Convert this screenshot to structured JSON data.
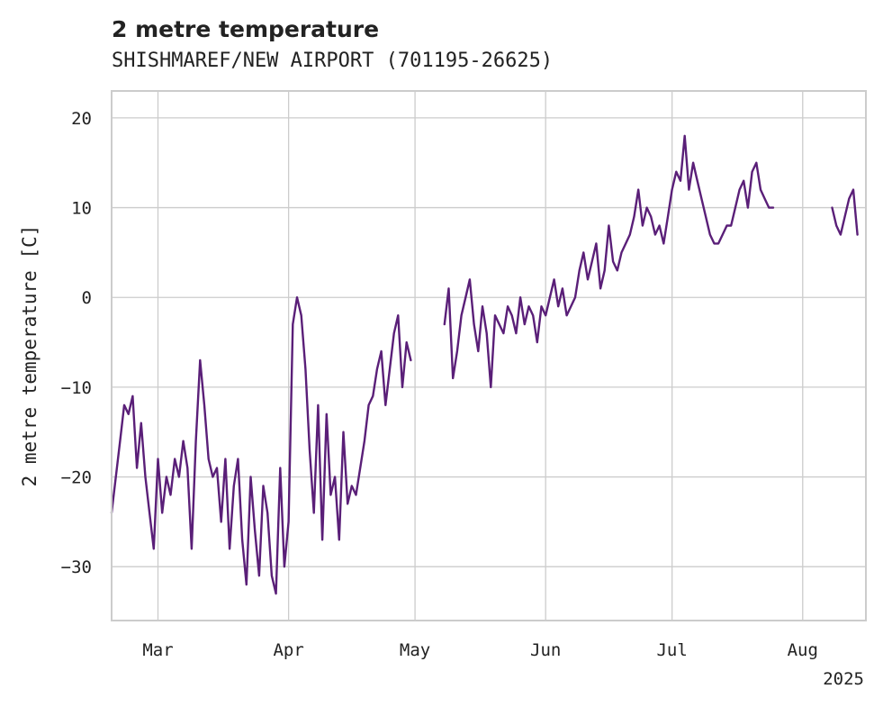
{
  "chart_data": {
    "type": "line",
    "title": "2 metre temperature",
    "subtitle": "SHISHMAREF/NEW AIRPORT (701195-26625)",
    "ylabel": "2 metre temperature [C]",
    "xlabel": "",
    "year_label": "2025",
    "xlim": [
      "2025-02-18",
      "2025-08-16"
    ],
    "ylim": [
      -36,
      23
    ],
    "x_ticks": [
      {
        "date": "2025-03-01",
        "label": "Mar"
      },
      {
        "date": "2025-04-01",
        "label": "Apr"
      },
      {
        "date": "2025-05-01",
        "label": "May"
      },
      {
        "date": "2025-06-01",
        "label": "Jun"
      },
      {
        "date": "2025-07-01",
        "label": "Jul"
      },
      {
        "date": "2025-08-01",
        "label": "Aug"
      }
    ],
    "y_ticks": [
      {
        "value": 20,
        "label": "20"
      },
      {
        "value": 10,
        "label": "10"
      },
      {
        "value": 0,
        "label": "0"
      },
      {
        "value": -10,
        "label": "−10"
      },
      {
        "value": -20,
        "label": "−20"
      },
      {
        "value": -30,
        "label": "−30"
      }
    ],
    "grid": true,
    "legend": "none",
    "colors": {
      "line": "#5a1f78"
    },
    "series": [
      {
        "segments": [
          {
            "x": [
              "2025-02-18",
              "2025-02-19",
              "2025-02-20",
              "2025-02-21",
              "2025-02-22",
              "2025-02-23",
              "2025-02-24",
              "2025-02-25",
              "2025-02-26",
              "2025-02-27",
              "2025-02-28",
              "2025-03-01",
              "2025-03-02",
              "2025-03-03",
              "2025-03-04",
              "2025-03-05",
              "2025-03-06",
              "2025-03-07",
              "2025-03-08",
              "2025-03-09",
              "2025-03-10",
              "2025-03-11",
              "2025-03-12",
              "2025-03-13",
              "2025-03-14",
              "2025-03-15",
              "2025-03-16",
              "2025-03-17",
              "2025-03-18",
              "2025-03-19",
              "2025-03-20",
              "2025-03-21",
              "2025-03-22",
              "2025-03-23",
              "2025-03-24",
              "2025-03-25",
              "2025-03-26",
              "2025-03-27",
              "2025-03-28",
              "2025-03-29",
              "2025-03-30",
              "2025-03-31",
              "2025-04-01",
              "2025-04-02",
              "2025-04-03",
              "2025-04-04",
              "2025-04-05",
              "2025-04-06",
              "2025-04-07",
              "2025-04-08",
              "2025-04-09",
              "2025-04-10",
              "2025-04-11",
              "2025-04-12",
              "2025-04-13",
              "2025-04-14",
              "2025-04-15",
              "2025-04-16",
              "2025-04-17",
              "2025-04-18",
              "2025-04-19",
              "2025-04-20",
              "2025-04-21",
              "2025-04-22",
              "2025-04-23",
              "2025-04-24",
              "2025-04-25",
              "2025-04-26",
              "2025-04-27",
              "2025-04-28",
              "2025-04-29",
              "2025-04-30"
            ],
            "y": [
              -24,
              -20,
              -16,
              -12,
              -13,
              -11,
              -19,
              -14,
              -20,
              -24,
              -28,
              -18,
              -24,
              -20,
              -22,
              -18,
              -20,
              -16,
              -19,
              -28,
              -16,
              -7,
              -12,
              -18,
              -20,
              -19,
              -25,
              -18,
              -28,
              -21,
              -18,
              -27,
              -32,
              -20,
              -26,
              -31,
              -21,
              -24,
              -31,
              -33,
              -19,
              -30,
              -25,
              -3,
              0,
              -2,
              -8,
              -17,
              -24,
              -12,
              -27,
              -13,
              -22,
              -20,
              -27,
              -15,
              -23,
              -21,
              -22,
              -19,
              -16,
              -12,
              -11,
              -8,
              -6,
              -12,
              -8,
              -4,
              -2,
              -10,
              -5,
              -7
            ]
          },
          {
            "x": [
              "2025-05-08",
              "2025-05-09",
              "2025-05-10",
              "2025-05-11",
              "2025-05-12",
              "2025-05-13",
              "2025-05-14",
              "2025-05-15",
              "2025-05-16",
              "2025-05-17",
              "2025-05-18",
              "2025-05-19",
              "2025-05-20",
              "2025-05-21",
              "2025-05-22",
              "2025-05-23",
              "2025-05-24",
              "2025-05-25",
              "2025-05-26",
              "2025-05-27",
              "2025-05-28",
              "2025-05-29",
              "2025-05-30",
              "2025-05-31",
              "2025-06-01",
              "2025-06-02",
              "2025-06-03",
              "2025-06-04",
              "2025-06-05",
              "2025-06-06",
              "2025-06-07",
              "2025-06-08",
              "2025-06-09",
              "2025-06-10",
              "2025-06-11",
              "2025-06-12",
              "2025-06-13",
              "2025-06-14",
              "2025-06-15",
              "2025-06-16",
              "2025-06-17",
              "2025-06-18",
              "2025-06-19",
              "2025-06-20",
              "2025-06-21",
              "2025-06-22",
              "2025-06-23",
              "2025-06-24",
              "2025-06-25",
              "2025-06-26",
              "2025-06-27",
              "2025-06-28",
              "2025-06-29",
              "2025-06-30",
              "2025-07-01",
              "2025-07-02",
              "2025-07-03",
              "2025-07-04",
              "2025-07-05",
              "2025-07-06",
              "2025-07-07",
              "2025-07-08",
              "2025-07-09",
              "2025-07-10",
              "2025-07-11",
              "2025-07-12",
              "2025-07-13",
              "2025-07-14",
              "2025-07-15",
              "2025-07-16",
              "2025-07-17",
              "2025-07-18",
              "2025-07-19",
              "2025-07-20",
              "2025-07-21",
              "2025-07-22",
              "2025-07-23",
              "2025-07-24",
              "2025-07-25"
            ],
            "y": [
              -3,
              1,
              -9,
              -6,
              -2,
              0,
              2,
              -3,
              -6,
              -1,
              -4,
              -10,
              -2,
              -3,
              -4,
              -1,
              -2,
              -4,
              0,
              -3,
              -1,
              -2,
              -5,
              -1,
              -2,
              0,
              2,
              -1,
              1,
              -2,
              -1,
              0,
              3,
              5,
              2,
              4,
              6,
              1,
              3,
              8,
              4,
              3,
              5,
              6,
              7,
              9,
              12,
              8,
              10,
              9,
              7,
              8,
              6,
              9,
              12,
              14,
              13,
              18,
              12,
              15,
              13,
              11,
              9,
              7,
              6,
              6,
              7,
              8,
              8,
              10,
              12,
              13,
              10,
              14,
              15,
              12,
              11,
              10,
              10
            ]
          },
          {
            "x": [
              "2025-08-08",
              "2025-08-09",
              "2025-08-10",
              "2025-08-11",
              "2025-08-12",
              "2025-08-13",
              "2025-08-14"
            ],
            "y": [
              10,
              8,
              7,
              9,
              11,
              12,
              7
            ]
          }
        ]
      }
    ]
  }
}
